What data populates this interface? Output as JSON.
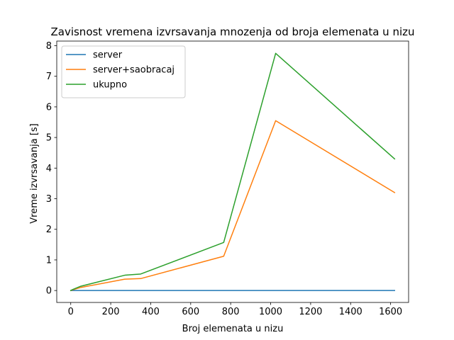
{
  "chart_data": {
    "type": "line",
    "title": "Zavisnost vremena izvrsavanja mnozenja od broja elemenata u nizu",
    "xlabel": "Broj elemenata u nizu",
    "ylabel": "Vreme izvrsavanja [s]",
    "xlim": [
      -70,
      1690
    ],
    "ylim": [
      -0.39,
      8.15
    ],
    "xticks": [
      0,
      200,
      400,
      600,
      800,
      1000,
      1200,
      1400,
      1600
    ],
    "yticks": [
      0,
      1,
      2,
      3,
      4,
      5,
      6,
      7,
      8
    ],
    "grid": false,
    "legend_position": "upper-left",
    "series": [
      {
        "name": "server",
        "color": "#1f77b4",
        "x": [
          0,
          9,
          50,
          270,
          350,
          765,
          1025,
          1620
        ],
        "y": [
          0,
          0,
          0,
          0,
          0,
          0,
          0,
          0
        ]
      },
      {
        "name": "server+saobracaj",
        "color": "#ff7f0e",
        "x": [
          0,
          9,
          50,
          270,
          350,
          765,
          1025,
          1620
        ],
        "y": [
          0.0,
          0.02,
          0.1,
          0.37,
          0.39,
          1.12,
          5.55,
          3.2
        ]
      },
      {
        "name": "ukupno",
        "color": "#2ca02c",
        "x": [
          0,
          9,
          50,
          270,
          350,
          765,
          1025,
          1620
        ],
        "y": [
          0.0,
          0.03,
          0.14,
          0.5,
          0.54,
          1.57,
          7.75,
          4.3
        ]
      }
    ]
  }
}
